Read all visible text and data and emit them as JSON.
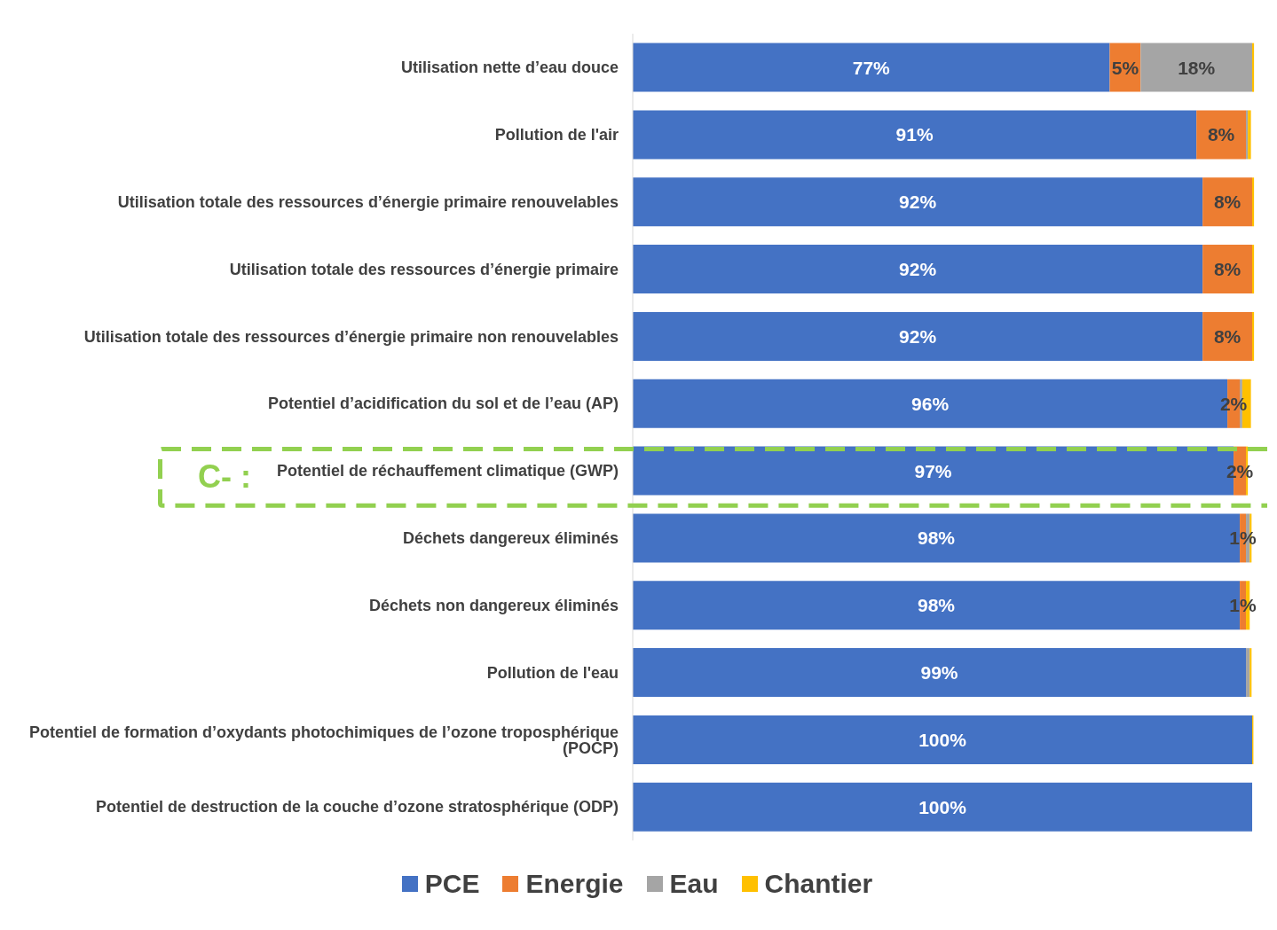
{
  "chart_data": {
    "type": "bar",
    "orientation": "horizontal",
    "stacked": true,
    "categories": [
      "Utilisation nette d’eau douce",
      "Pollution de l'air",
      "Utilisation totale des ressources d’énergie primaire renouvelables",
      "Utilisation totale des ressources d’énergie primaire",
      "Utilisation totale des ressources d’énergie primaire non renouvelables",
      "Potentiel d’acidification du sol et de l’eau (AP)",
      "Potentiel de réchauffement climatique (GWP)",
      "Déchets dangereux éliminés",
      "Déchets non dangereux éliminés",
      "Pollution de l'eau",
      "Potentiel de formation d’oxydants photochimiques de l’ozone troposphérique (POCP)",
      "Potentiel de destruction de la couche d’ozone stratosphérique (ODP)"
    ],
    "series": [
      {
        "name": "PCE",
        "color": "#4472c4",
        "values": [
          77,
          91,
          92,
          92,
          92,
          96,
          97,
          98,
          98,
          99,
          100,
          100
        ],
        "value_labels": [
          "77%",
          "91%",
          "92%",
          "92%",
          "92%",
          "96%",
          "97%",
          "98%",
          "98%",
          "99%",
          "100%",
          "100%"
        ]
      },
      {
        "name": "Energie",
        "color": "#ed7d31",
        "values": [
          5,
          8,
          8,
          8,
          8,
          2,
          2,
          1,
          1,
          null,
          null,
          null
        ],
        "value_labels": [
          "5%",
          "8%",
          "8%",
          "8%",
          "8%",
          "2%",
          "2%",
          "1%",
          "1%",
          null,
          null,
          null
        ]
      },
      {
        "name": "Eau",
        "color": "#a5a5a5",
        "values": [
          18,
          0.3,
          null,
          null,
          null,
          0.4,
          null,
          0.6,
          null,
          0.6,
          null,
          null
        ],
        "value_labels": [
          "18%",
          null,
          null,
          null,
          null,
          null,
          null,
          null,
          null,
          null,
          null,
          null
        ]
      },
      {
        "name": "Chantier",
        "color": "#ffc000",
        "values": [
          0.3,
          0.5,
          0.3,
          0.3,
          0.3,
          1.4,
          0.3,
          0.3,
          0.6,
          0.3,
          0.2,
          null
        ]
      }
    ],
    "xlim": [
      0,
      101
    ],
    "tick_labels": "y",
    "legend": "bottom",
    "annotations": [
      "C- :"
    ]
  }
}
